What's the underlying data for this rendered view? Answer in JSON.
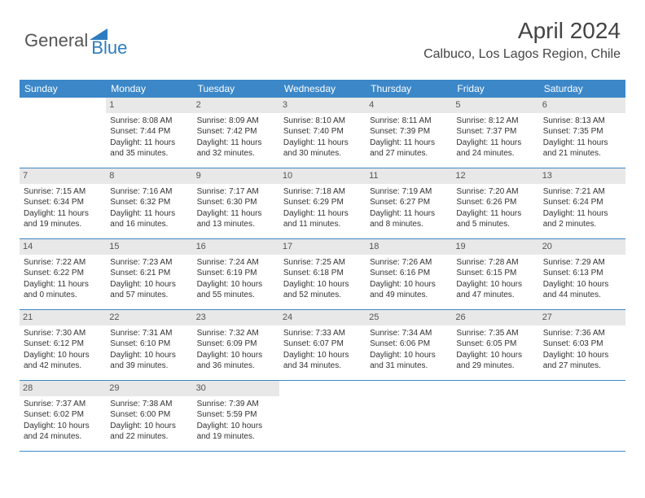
{
  "logo": {
    "text_general": "General",
    "text_blue": "Blue",
    "triangle_color": "#2d7dc0"
  },
  "header": {
    "month_title": "April 2024",
    "location": "Calbuco, Los Lagos Region, Chile"
  },
  "colors": {
    "header_bg": "#3b87c8",
    "header_text": "#ffffff",
    "daynum_bg": "#e8e8e8",
    "daynum_text": "#555555",
    "body_text": "#333333",
    "border": "#3b87c8"
  },
  "weekdays": [
    "Sunday",
    "Monday",
    "Tuesday",
    "Wednesday",
    "Thursday",
    "Friday",
    "Saturday"
  ],
  "weeks": [
    [
      {
        "n": "",
        "sr": "",
        "ss": "",
        "dl": ""
      },
      {
        "n": "1",
        "sr": "Sunrise: 8:08 AM",
        "ss": "Sunset: 7:44 PM",
        "dl": "Daylight: 11 hours and 35 minutes."
      },
      {
        "n": "2",
        "sr": "Sunrise: 8:09 AM",
        "ss": "Sunset: 7:42 PM",
        "dl": "Daylight: 11 hours and 32 minutes."
      },
      {
        "n": "3",
        "sr": "Sunrise: 8:10 AM",
        "ss": "Sunset: 7:40 PM",
        "dl": "Daylight: 11 hours and 30 minutes."
      },
      {
        "n": "4",
        "sr": "Sunrise: 8:11 AM",
        "ss": "Sunset: 7:39 PM",
        "dl": "Daylight: 11 hours and 27 minutes."
      },
      {
        "n": "5",
        "sr": "Sunrise: 8:12 AM",
        "ss": "Sunset: 7:37 PM",
        "dl": "Daylight: 11 hours and 24 minutes."
      },
      {
        "n": "6",
        "sr": "Sunrise: 8:13 AM",
        "ss": "Sunset: 7:35 PM",
        "dl": "Daylight: 11 hours and 21 minutes."
      }
    ],
    [
      {
        "n": "7",
        "sr": "Sunrise: 7:15 AM",
        "ss": "Sunset: 6:34 PM",
        "dl": "Daylight: 11 hours and 19 minutes."
      },
      {
        "n": "8",
        "sr": "Sunrise: 7:16 AM",
        "ss": "Sunset: 6:32 PM",
        "dl": "Daylight: 11 hours and 16 minutes."
      },
      {
        "n": "9",
        "sr": "Sunrise: 7:17 AM",
        "ss": "Sunset: 6:30 PM",
        "dl": "Daylight: 11 hours and 13 minutes."
      },
      {
        "n": "10",
        "sr": "Sunrise: 7:18 AM",
        "ss": "Sunset: 6:29 PM",
        "dl": "Daylight: 11 hours and 11 minutes."
      },
      {
        "n": "11",
        "sr": "Sunrise: 7:19 AM",
        "ss": "Sunset: 6:27 PM",
        "dl": "Daylight: 11 hours and 8 minutes."
      },
      {
        "n": "12",
        "sr": "Sunrise: 7:20 AM",
        "ss": "Sunset: 6:26 PM",
        "dl": "Daylight: 11 hours and 5 minutes."
      },
      {
        "n": "13",
        "sr": "Sunrise: 7:21 AM",
        "ss": "Sunset: 6:24 PM",
        "dl": "Daylight: 11 hours and 2 minutes."
      }
    ],
    [
      {
        "n": "14",
        "sr": "Sunrise: 7:22 AM",
        "ss": "Sunset: 6:22 PM",
        "dl": "Daylight: 11 hours and 0 minutes."
      },
      {
        "n": "15",
        "sr": "Sunrise: 7:23 AM",
        "ss": "Sunset: 6:21 PM",
        "dl": "Daylight: 10 hours and 57 minutes."
      },
      {
        "n": "16",
        "sr": "Sunrise: 7:24 AM",
        "ss": "Sunset: 6:19 PM",
        "dl": "Daylight: 10 hours and 55 minutes."
      },
      {
        "n": "17",
        "sr": "Sunrise: 7:25 AM",
        "ss": "Sunset: 6:18 PM",
        "dl": "Daylight: 10 hours and 52 minutes."
      },
      {
        "n": "18",
        "sr": "Sunrise: 7:26 AM",
        "ss": "Sunset: 6:16 PM",
        "dl": "Daylight: 10 hours and 49 minutes."
      },
      {
        "n": "19",
        "sr": "Sunrise: 7:28 AM",
        "ss": "Sunset: 6:15 PM",
        "dl": "Daylight: 10 hours and 47 minutes."
      },
      {
        "n": "20",
        "sr": "Sunrise: 7:29 AM",
        "ss": "Sunset: 6:13 PM",
        "dl": "Daylight: 10 hours and 44 minutes."
      }
    ],
    [
      {
        "n": "21",
        "sr": "Sunrise: 7:30 AM",
        "ss": "Sunset: 6:12 PM",
        "dl": "Daylight: 10 hours and 42 minutes."
      },
      {
        "n": "22",
        "sr": "Sunrise: 7:31 AM",
        "ss": "Sunset: 6:10 PM",
        "dl": "Daylight: 10 hours and 39 minutes."
      },
      {
        "n": "23",
        "sr": "Sunrise: 7:32 AM",
        "ss": "Sunset: 6:09 PM",
        "dl": "Daylight: 10 hours and 36 minutes."
      },
      {
        "n": "24",
        "sr": "Sunrise: 7:33 AM",
        "ss": "Sunset: 6:07 PM",
        "dl": "Daylight: 10 hours and 34 minutes."
      },
      {
        "n": "25",
        "sr": "Sunrise: 7:34 AM",
        "ss": "Sunset: 6:06 PM",
        "dl": "Daylight: 10 hours and 31 minutes."
      },
      {
        "n": "26",
        "sr": "Sunrise: 7:35 AM",
        "ss": "Sunset: 6:05 PM",
        "dl": "Daylight: 10 hours and 29 minutes."
      },
      {
        "n": "27",
        "sr": "Sunrise: 7:36 AM",
        "ss": "Sunset: 6:03 PM",
        "dl": "Daylight: 10 hours and 27 minutes."
      }
    ],
    [
      {
        "n": "28",
        "sr": "Sunrise: 7:37 AM",
        "ss": "Sunset: 6:02 PM",
        "dl": "Daylight: 10 hours and 24 minutes."
      },
      {
        "n": "29",
        "sr": "Sunrise: 7:38 AM",
        "ss": "Sunset: 6:00 PM",
        "dl": "Daylight: 10 hours and 22 minutes."
      },
      {
        "n": "30",
        "sr": "Sunrise: 7:39 AM",
        "ss": "Sunset: 5:59 PM",
        "dl": "Daylight: 10 hours and 19 minutes."
      },
      {
        "n": "",
        "sr": "",
        "ss": "",
        "dl": ""
      },
      {
        "n": "",
        "sr": "",
        "ss": "",
        "dl": ""
      },
      {
        "n": "",
        "sr": "",
        "ss": "",
        "dl": ""
      },
      {
        "n": "",
        "sr": "",
        "ss": "",
        "dl": ""
      }
    ]
  ]
}
